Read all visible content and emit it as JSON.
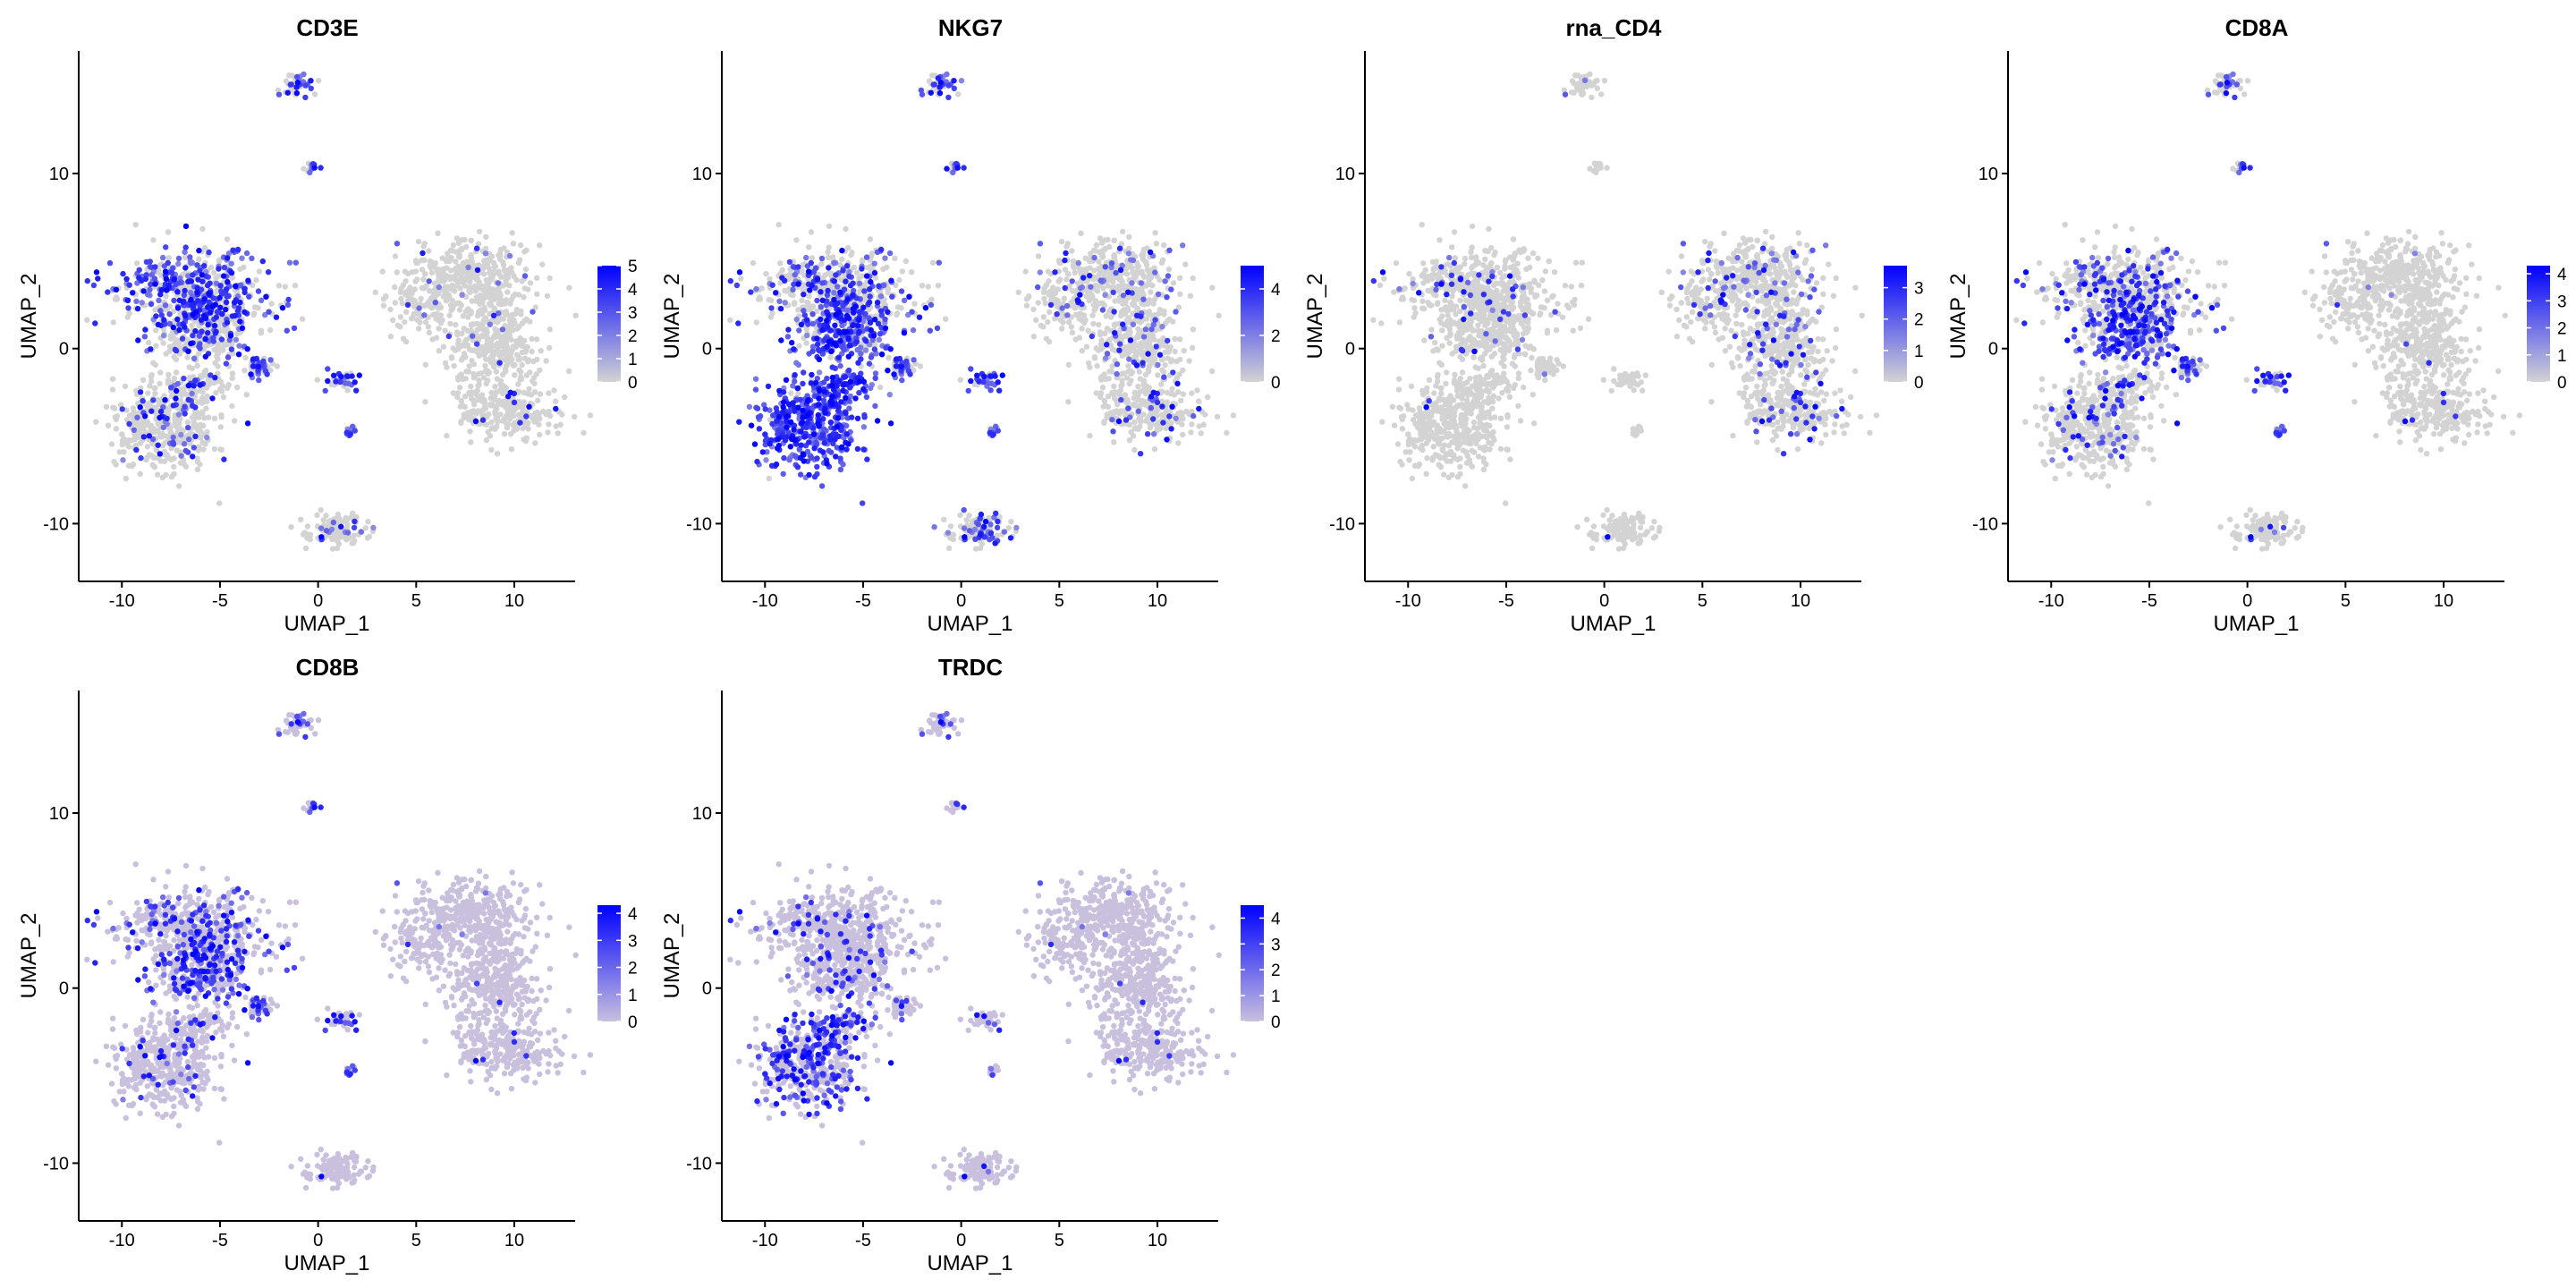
{
  "chart_data": [
    {
      "type": "scatter",
      "title": "CD3E",
      "xlabel": "UMAP_1",
      "ylabel": "UMAP_2",
      "xlim": [
        -12.2,
        13.1
      ],
      "ylim": [
        -13.3,
        17.0
      ],
      "xticks": [
        "-10",
        "-5",
        "0",
        "5",
        "10"
      ],
      "yticks": [
        "-10",
        "0",
        "10"
      ],
      "legend_ticks": [
        "0",
        "1",
        "2",
        "3",
        "4",
        "5"
      ],
      "legend_max": 5,
      "legend_position": "right",
      "expression": {
        "t_cell_cluster": 0.55,
        "t_cell_lower": 0.25,
        "nk_cluster": 0.15,
        "myeloid": 0.03,
        "bottom_cluster": 0.12,
        "small_clusters": 0.4
      }
    },
    {
      "type": "scatter",
      "title": "NKG7",
      "xlabel": "UMAP_1",
      "ylabel": "UMAP_2",
      "xlim": [
        -12.2,
        13.1
      ],
      "ylim": [
        -13.3,
        17.0
      ],
      "xticks": [
        "-10",
        "-5",
        "0",
        "5",
        "10"
      ],
      "yticks": [
        "-10",
        "0",
        "10"
      ],
      "legend_ticks": [
        "0",
        "2",
        "4"
      ],
      "legend_max": 5,
      "legend_position": "right",
      "expression": {
        "t_cell_cluster": 0.3,
        "t_cell_lower": 0.75,
        "nk_cluster": 0.95,
        "myeloid": 0.12,
        "bottom_cluster": 0.3,
        "small_clusters": 0.45
      }
    },
    {
      "type": "scatter",
      "title": "rna_CD4",
      "xlabel": "UMAP_1",
      "ylabel": "UMAP_2",
      "xlim": [
        -12.2,
        13.1
      ],
      "ylim": [
        -13.3,
        17.0
      ],
      "xticks": [
        "-10",
        "-5",
        "0",
        "5",
        "10"
      ],
      "yticks": [
        "-10",
        "0",
        "10"
      ],
      "legend_ticks": [
        "0",
        "1",
        "2",
        "3"
      ],
      "legend_max": 3.7,
      "legend_position": "right",
      "expression": {
        "t_cell_cluster": 0.08,
        "t_cell_lower": 0.04,
        "nk_cluster": 0.01,
        "myeloid": 0.12,
        "bottom_cluster": 0.02,
        "small_clusters": 0.03
      }
    },
    {
      "type": "scatter",
      "title": "CD8A",
      "xlabel": "UMAP_1",
      "ylabel": "UMAP_2",
      "xlim": [
        -12.2,
        13.1
      ],
      "ylim": [
        -13.3,
        17.0
      ],
      "xticks": [
        "-10",
        "-5",
        "0",
        "5",
        "10"
      ],
      "yticks": [
        "-10",
        "0",
        "10"
      ],
      "legend_ticks": [
        "0",
        "1",
        "2",
        "3",
        "4"
      ],
      "legend_max": 4.3,
      "legend_position": "right",
      "expression": {
        "t_cell_cluster": 0.25,
        "t_cell_lower": 0.6,
        "nk_cluster": 0.12,
        "myeloid": 0.01,
        "bottom_cluster": 0.05,
        "small_clusters": 0.35
      }
    },
    {
      "type": "scatter",
      "title": "CD8B",
      "xlabel": "UMAP_1",
      "ylabel": "UMAP_2",
      "xlim": [
        -12.2,
        13.1
      ],
      "ylim": [
        -13.3,
        17.0
      ],
      "xticks": [
        "-10",
        "-5",
        "0",
        "5",
        "10"
      ],
      "yticks": [
        "-10",
        "0",
        "10"
      ],
      "legend_ticks": [
        "0",
        "1",
        "2",
        "3",
        "4"
      ],
      "legend_max": 4.3,
      "legend_position": "right",
      "baseline_color": "#c8c0dd",
      "expression": {
        "t_cell_cluster": 0.2,
        "t_cell_lower": 0.45,
        "nk_cluster": 0.08,
        "myeloid": 0.01,
        "bottom_cluster": 0.02,
        "small_clusters": 0.25
      }
    },
    {
      "type": "scatter",
      "title": "TRDC",
      "xlabel": "UMAP_1",
      "ylabel": "UMAP_2",
      "xlim": [
        -12.2,
        13.1
      ],
      "ylim": [
        -13.3,
        17.0
      ],
      "xticks": [
        "-10",
        "-5",
        "0",
        "5",
        "10"
      ],
      "yticks": [
        "-10",
        "0",
        "10"
      ],
      "legend_ticks": [
        "0",
        "1",
        "2",
        "3",
        "4"
      ],
      "legend_max": 4.5,
      "legend_position": "right",
      "baseline_color": "#c8c0dd",
      "expression": {
        "t_cell_cluster": 0.08,
        "t_cell_lower": 0.15,
        "nk_cluster": 0.45,
        "myeloid": 0.01,
        "bottom_cluster": 0.03,
        "small_clusters": 0.15
      }
    }
  ],
  "colors": {
    "low": "#d3d3d3",
    "high": "#0000ff"
  }
}
